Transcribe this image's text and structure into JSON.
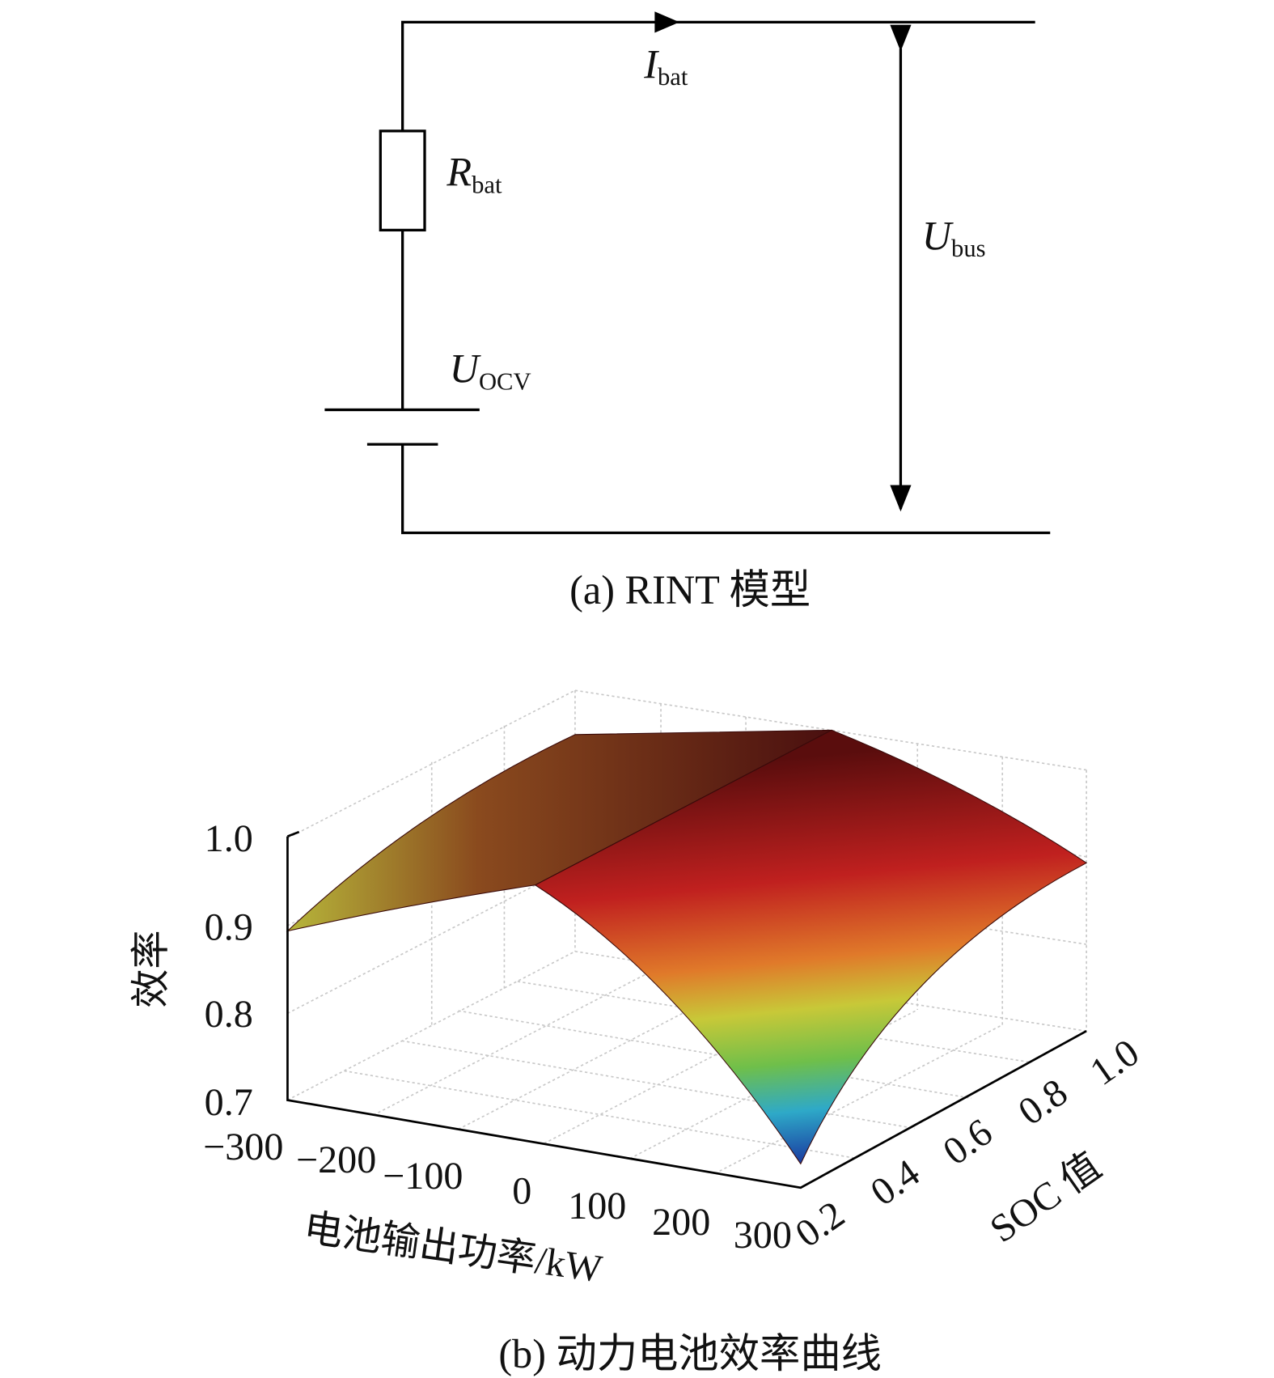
{
  "circuit": {
    "current": {
      "symbol": "I",
      "subscript": "bat"
    },
    "resistor": {
      "symbol": "R",
      "subscript": "bat"
    },
    "bus_voltage": {
      "symbol": "U",
      "subscript": "bus"
    },
    "ocv": {
      "symbol": "U",
      "subscript": "OCV"
    },
    "caption": "(a) RINT 模型"
  },
  "surface_plot": {
    "z_label": "效率",
    "x_label": "电池输出功率/kW",
    "y_label": "SOC 值",
    "z_ticks": [
      "1.0",
      "0.9",
      "0.8",
      "0.7"
    ],
    "x_ticks": [
      "−300",
      "−200",
      "−100",
      "0",
      "100",
      "200",
      "300"
    ],
    "y_ticks": [
      "0.2",
      "0.4",
      "0.6",
      "0.8",
      "1.0"
    ],
    "caption": "(b) 动力电池效率曲线"
  }
}
